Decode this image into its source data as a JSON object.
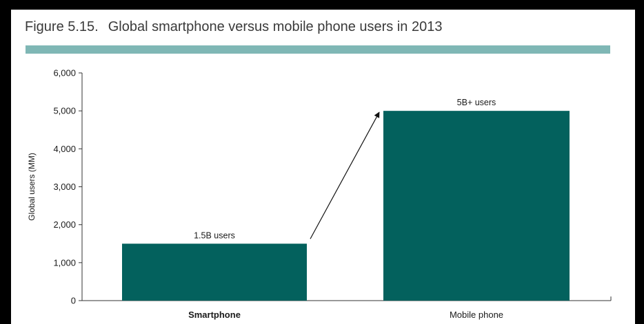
{
  "figure": {
    "number": "Figure 5.15.",
    "title": "Global smartphone versus mobile phone users in 2013"
  },
  "colors": {
    "bar": "#03615d",
    "rule": "#7fb7b5",
    "axis": "#333333",
    "text": "#1a1a1a"
  },
  "chart_data": {
    "type": "bar",
    "title": "Global smartphone versus mobile phone users in 2013",
    "xlabel": "",
    "ylabel": "Global users (MM)",
    "ylim": [
      0,
      6000
    ],
    "yticks": [
      0,
      1000,
      2000,
      3000,
      4000,
      5000,
      6000
    ],
    "ytick_labels": [
      "0",
      "1,000",
      "2,000",
      "3,000",
      "4,000",
      "5,000",
      "6,000"
    ],
    "categories": [
      "Smartphone",
      "Mobile phone"
    ],
    "values": [
      1500,
      5000
    ],
    "data_labels": [
      "1.5B users",
      "5B+ users"
    ],
    "annotations": [
      {
        "type": "arrow",
        "from_category": "Smartphone",
        "to_category": "Mobile phone"
      }
    ],
    "grid": false,
    "legend": "none"
  }
}
